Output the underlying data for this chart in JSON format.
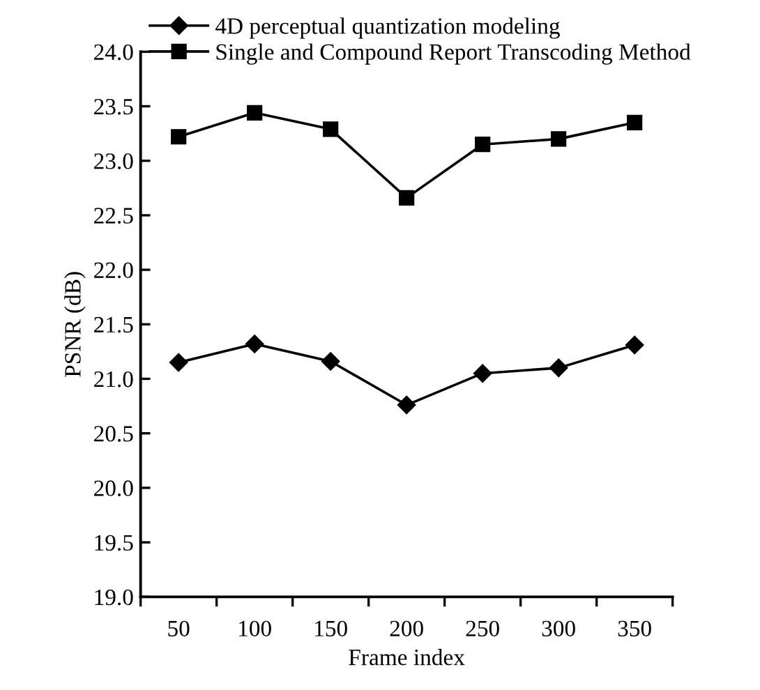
{
  "chart_data": {
    "type": "line",
    "xlabel": "Frame index",
    "ylabel": "PSNR (dB)",
    "categories": [
      "50",
      "100",
      "150",
      "200",
      "250",
      "300",
      "350"
    ],
    "series": [
      {
        "name": "4D perceptual quantization modeling",
        "color": "#000000",
        "marker": "diamond",
        "values": [
          21.15,
          21.32,
          21.16,
          20.76,
          21.05,
          21.1,
          21.31
        ]
      },
      {
        "name": "Single and Compound Report Transcoding Method",
        "color": "#000000",
        "marker": "square",
        "values": [
          23.22,
          23.44,
          23.29,
          22.66,
          23.15,
          23.2,
          23.35
        ]
      }
    ],
    "ylim": [
      19.0,
      24.0
    ],
    "yticks": [
      {
        "value": 19.0,
        "label": "19.0"
      },
      {
        "value": 19.5,
        "label": "19.5"
      },
      {
        "value": 20.0,
        "label": "20.0"
      },
      {
        "value": 20.5,
        "label": "20.5"
      },
      {
        "value": 21.0,
        "label": "21.0"
      },
      {
        "value": 21.5,
        "label": "21.5"
      },
      {
        "value": 22.0,
        "label": "22.0"
      },
      {
        "value": 22.5,
        "label": "22.5"
      },
      {
        "value": 23.0,
        "label": "23.0"
      },
      {
        "value": 23.5,
        "label": "23.5"
      },
      {
        "value": 24.0,
        "label": "24.0"
      }
    ],
    "grid": false,
    "legend": "top",
    "line_style": "solid"
  }
}
